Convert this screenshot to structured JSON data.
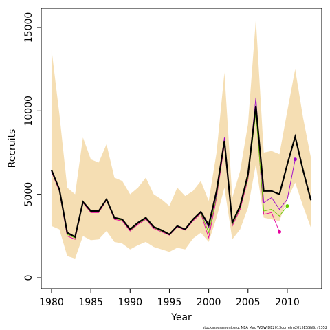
{
  "chart_data": {
    "type": "line",
    "x_label": "Year",
    "y_label": "Recruits",
    "footer": "stockassessment.org, NEA Mac WGWIDE2013corretro2015ESSNS, r7352",
    "x": [
      1980,
      1981,
      1982,
      1983,
      1984,
      1985,
      1986,
      1987,
      1988,
      1989,
      1990,
      1991,
      1992,
      1993,
      1994,
      1995,
      1996,
      1997,
      1998,
      1999,
      2000,
      2001,
      2002,
      2003,
      2004,
      2005,
      2006,
      2007,
      2008,
      2009,
      2010,
      2011,
      2012,
      2013
    ],
    "band": {
      "color": "#f5deb3",
      "upper": [
        13700,
        9800,
        5400,
        5000,
        8400,
        7100,
        6900,
        8000,
        6000,
        5800,
        5000,
        5400,
        6000,
        5000,
        4700,
        4300,
        5400,
        4900,
        5200,
        5800,
        4600,
        7500,
        12300,
        4800,
        6400,
        9200,
        15500,
        7500,
        7600,
        7400,
        10000,
        12500,
        9600,
        7200
      ],
      "lower": [
        3100,
        2900,
        1300,
        1150,
        2500,
        2250,
        2300,
        2800,
        2150,
        2050,
        1700,
        1950,
        2150,
        1850,
        1700,
        1550,
        1800,
        1700,
        2350,
        2700,
        2150,
        3600,
        5400,
        2300,
        2900,
        4200,
        6800,
        3600,
        3500,
        3400,
        4700,
        5700,
        4300,
        3000
      ]
    },
    "series": [
      {
        "color": "#e6009e",
        "values": [
          6350,
          5200,
          2500,
          2300,
          4500,
          3900,
          3900,
          4650,
          3500,
          3400,
          2800,
          3200,
          3500,
          2950,
          2750,
          2550,
          3050,
          2850,
          3400,
          3850,
          2400,
          4800,
          8000,
          3100,
          4100,
          5900,
          10100,
          3800,
          3900,
          2750,
          null,
          null,
          null,
          null
        ]
      },
      {
        "color": "#66cc00",
        "values": [
          6400,
          5250,
          2600,
          2380,
          4520,
          3950,
          3950,
          4680,
          3550,
          3450,
          2850,
          3250,
          3550,
          3000,
          2800,
          2580,
          3080,
          2880,
          3450,
          3900,
          2700,
          4900,
          8200,
          3200,
          4200,
          6000,
          9900,
          4000,
          4100,
          3700,
          4300,
          null,
          null,
          null
        ]
      },
      {
        "color": "#9900cc",
        "values": [
          6450,
          5300,
          2650,
          2420,
          4550,
          4000,
          4000,
          4700,
          3580,
          3480,
          2880,
          3280,
          3580,
          3030,
          2830,
          2590,
          3100,
          2900,
          3480,
          3920,
          3000,
          5000,
          8400,
          3250,
          4250,
          6100,
          10800,
          4500,
          4800,
          4100,
          4700,
          7100,
          null,
          null
        ]
      },
      {
        "color": "#000000",
        "width": 2.2,
        "values": [
          6450,
          5300,
          2700,
          2450,
          4550,
          4000,
          4000,
          4700,
          3600,
          3500,
          2900,
          3300,
          3600,
          3050,
          2850,
          2600,
          3100,
          2900,
          3500,
          3950,
          3150,
          5200,
          8200,
          3300,
          4300,
          6200,
          10300,
          5200,
          5200,
          5000,
          6800,
          8450,
          6450,
          4650
        ]
      }
    ],
    "xlim": [
      1978.69,
      2014.38
    ],
    "ylim": [
      -659,
      16153
    ],
    "xticks": [
      1980,
      1985,
      1990,
      1995,
      2000,
      2005,
      2010
    ],
    "yticks": [
      0,
      5000,
      10000,
      15000
    ]
  }
}
